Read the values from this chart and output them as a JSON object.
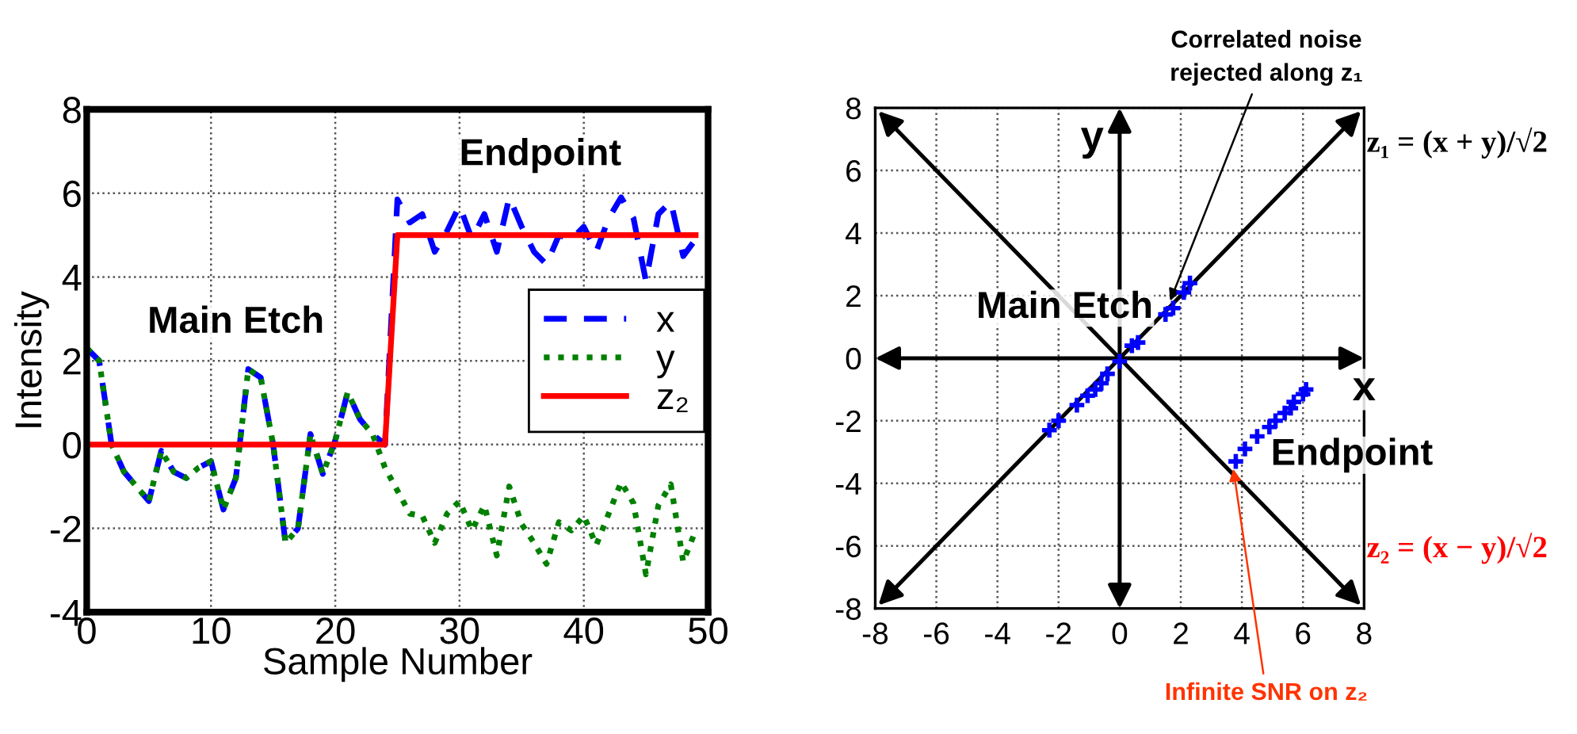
{
  "chart_data": [
    {
      "type": "line",
      "xlabel": "Sample Number",
      "ylabel": "Intensity",
      "x": [
        0,
        1,
        2,
        3,
        4,
        5,
        6,
        7,
        8,
        9,
        10,
        11,
        12,
        13,
        14,
        15,
        16,
        17,
        18,
        19,
        20,
        21,
        22,
        23,
        24,
        25,
        26,
        27,
        28,
        29,
        30,
        31,
        32,
        33,
        34,
        35,
        36,
        37,
        38,
        39,
        40,
        41,
        42,
        43,
        44,
        45,
        46,
        47,
        48,
        49
      ],
      "series": [
        {
          "name": "x",
          "color": "#0000ff",
          "line_style": "dashed",
          "values": [
            2.3,
            2.0,
            0.0,
            -0.65,
            -1.0,
            -1.35,
            -0.15,
            -0.65,
            -0.8,
            -0.55,
            -0.4,
            -1.55,
            -0.8,
            1.8,
            1.6,
            0.0,
            -2.35,
            -2.0,
            0.25,
            -0.7,
            0.1,
            1.25,
            0.6,
            0.25,
            0.0,
            5.85,
            5.3,
            5.5,
            4.6,
            5.1,
            5.7,
            4.9,
            5.5,
            4.6,
            5.9,
            5.2,
            4.6,
            4.3,
            5.0,
            4.9,
            5.2,
            4.6,
            5.4,
            5.9,
            5.4,
            3.9,
            5.5,
            5.8,
            4.5,
            4.9
          ]
        },
        {
          "name": "y",
          "color": "#008000",
          "line_style": "dotted",
          "values": [
            2.3,
            2.0,
            0.0,
            -0.65,
            -1.0,
            -1.35,
            -0.15,
            -0.65,
            -0.8,
            -0.55,
            -0.4,
            -1.55,
            -0.8,
            1.8,
            1.6,
            0.0,
            -2.35,
            -2.0,
            0.25,
            -0.7,
            0.1,
            1.25,
            0.6,
            0.25,
            -0.55,
            -1.1,
            -1.65,
            -1.7,
            -2.35,
            -1.65,
            -1.35,
            -2.05,
            -1.45,
            -2.65,
            -1.0,
            -1.9,
            -2.35,
            -2.85,
            -1.85,
            -2.05,
            -1.7,
            -2.4,
            -1.65,
            -0.9,
            -1.4,
            -3.1,
            -1.45,
            -0.95,
            -2.8,
            -2.05
          ]
        },
        {
          "name": "z₂",
          "color": "#ff0000",
          "line_style": "solid",
          "values": [
            0,
            0,
            0,
            0,
            0,
            0,
            0,
            0,
            0,
            0,
            0,
            0,
            0,
            0,
            0,
            0,
            0,
            0,
            0,
            0,
            0,
            0,
            0,
            0,
            0,
            5,
            5,
            5,
            5,
            5,
            5,
            5,
            5,
            5,
            5,
            5,
            5,
            5,
            5,
            5,
            5,
            5,
            5,
            5,
            5,
            5,
            5,
            5,
            5,
            5
          ]
        }
      ],
      "xlim": [
        0,
        50
      ],
      "xticks": [
        0,
        10,
        20,
        30,
        40,
        50
      ],
      "ylim": [
        -4,
        8
      ],
      "yticks": [
        -4,
        -2,
        0,
        2,
        4,
        6,
        8
      ],
      "grid": true,
      "legend": "right",
      "marker": "none",
      "annotations": [
        "Main Etch",
        "Endpoint"
      ]
    },
    {
      "type": "scatter",
      "series": [
        {
          "color": "#0000ff",
          "x": [
            -2.3,
            -2.0,
            -1.4,
            -1.05,
            -0.8,
            -0.6,
            -0.4,
            0.0,
            0.4,
            0.6,
            1.5,
            1.75,
            2.1,
            2.3,
            3.8,
            4.1,
            4.5,
            4.9,
            5.1,
            5.4,
            5.6,
            5.7,
            6.0,
            6.1
          ],
          "values": [
            -2.3,
            -2.0,
            -1.5,
            -1.2,
            -1.0,
            -0.8,
            -0.5,
            -0.1,
            0.4,
            0.5,
            1.4,
            1.6,
            2.1,
            2.4,
            -3.3,
            -2.9,
            -2.5,
            -2.2,
            -2.0,
            -1.75,
            -1.6,
            -1.4,
            -1.15,
            -1.0
          ]
        }
      ],
      "xlim": [
        -8,
        8
      ],
      "xticks": [
        -8,
        -6,
        -4,
        -2,
        0,
        2,
        4,
        6,
        8
      ],
      "ylim": [
        -8,
        8
      ],
      "yticks": [
        -8,
        -6,
        -4,
        -2,
        0,
        2,
        4,
        6,
        8
      ],
      "grid": true,
      "marker": "cross",
      "annotations": [
        "Main Etch",
        "Endpoint",
        "x",
        "y",
        {
          "text": "Correlated noise\nrejected along z₁",
          "x": 1.6,
          "y": 1.7
        },
        {
          "text": "Infinite SNR on z₂",
          "x": 3.7,
          "y": -3.4
        },
        "z₁ = (x + y)/√2",
        "z₂ = (x − y)/√2"
      ]
    }
  ]
}
